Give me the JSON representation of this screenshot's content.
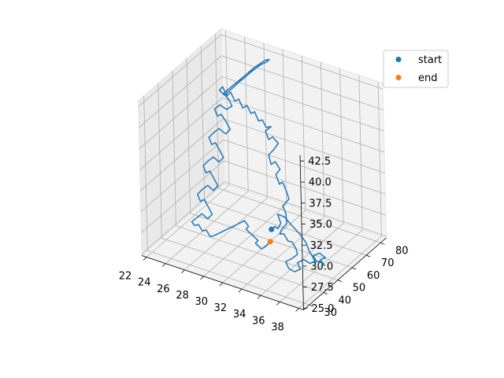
{
  "chart_data": {
    "type": "line3d",
    "title": "",
    "xlabel": "",
    "ylabel": "",
    "zlabel": "",
    "x_ticks": [
      "22",
      "24",
      "26",
      "28",
      "30",
      "32",
      "34",
      "36",
      "38"
    ],
    "y_ticks": [
      "30",
      "40",
      "50",
      "60",
      "70",
      "80"
    ],
    "z_ticks": [
      "25.0",
      "27.5",
      "30.0",
      "32.5",
      "35.0",
      "37.5",
      "40.0",
      "42.5"
    ],
    "xlim": [
      21.5,
      38.5
    ],
    "ylim": [
      26,
      84
    ],
    "zlim": [
      24.8,
      43.2
    ],
    "grid": true,
    "legend_position": "top-right",
    "series": [
      {
        "name": "",
        "color": "#1f77b4",
        "points": [
          [
            31.6,
            50.0,
            28.2
          ],
          [
            31.9,
            50.5,
            28.6
          ],
          [
            32.1,
            51.2,
            28.3
          ],
          [
            32.3,
            52.0,
            28.9
          ],
          [
            32.0,
            53.0,
            29.1
          ],
          [
            31.7,
            53.8,
            29.5
          ],
          [
            32.3,
            54.5,
            29.3
          ],
          [
            33.0,
            55.2,
            28.4
          ],
          [
            33.8,
            55.5,
            27.6
          ],
          [
            34.5,
            54.8,
            27.0
          ],
          [
            35.0,
            53.5,
            26.4
          ],
          [
            35.5,
            52.2,
            26.2
          ],
          [
            36.0,
            51.0,
            25.9
          ],
          [
            36.6,
            50.2,
            26.3
          ],
          [
            37.2,
            49.6,
            26.1
          ],
          [
            36.9,
            48.8,
            26.8
          ],
          [
            37.5,
            48.4,
            27.3
          ],
          [
            37.0,
            47.6,
            27.8
          ],
          [
            36.4,
            47.2,
            27.3
          ],
          [
            36.8,
            46.3,
            27.0
          ],
          [
            36.3,
            45.5,
            26.6
          ],
          [
            35.8,
            44.6,
            27.0
          ],
          [
            35.2,
            44.0,
            26.5
          ],
          [
            35.6,
            43.2,
            26.0
          ],
          [
            35.1,
            42.5,
            25.6
          ],
          [
            34.6,
            41.8,
            25.9
          ],
          [
            34.2,
            42.4,
            26.5
          ],
          [
            34.7,
            43.0,
            26.9
          ],
          [
            35.3,
            43.5,
            27.6
          ],
          [
            35.0,
            44.5,
            28.0
          ],
          [
            34.4,
            45.8,
            28.4
          ],
          [
            33.8,
            47.0,
            28.1
          ],
          [
            33.1,
            48.5,
            28.5
          ],
          [
            32.5,
            49.8,
            28.0
          ],
          [
            32.6,
            50.3,
            28.5
          ],
          [
            33.0,
            51.5,
            29.2
          ],
          [
            32.7,
            53.0,
            30.1
          ],
          [
            32.2,
            54.2,
            30.6
          ],
          [
            32.6,
            56.0,
            31.3
          ],
          [
            32.1,
            57.5,
            31.9
          ],
          [
            31.6,
            58.4,
            32.6
          ],
          [
            31.1,
            59.4,
            32.0
          ],
          [
            30.6,
            60.4,
            32.8
          ],
          [
            30.9,
            61.4,
            33.4
          ],
          [
            30.3,
            62.0,
            34.0
          ],
          [
            29.8,
            62.5,
            33.4
          ],
          [
            29.4,
            63.5,
            34.2
          ],
          [
            29.9,
            64.0,
            35.0
          ],
          [
            30.3,
            64.5,
            35.8
          ],
          [
            29.6,
            65.2,
            36.2
          ],
          [
            29.1,
            65.8,
            35.6
          ],
          [
            28.7,
            66.2,
            36.4
          ],
          [
            29.2,
            67.0,
            37.0
          ],
          [
            28.6,
            67.5,
            36.6
          ],
          [
            28.1,
            68.2,
            37.2
          ],
          [
            27.6,
            68.8,
            36.8
          ],
          [
            27.1,
            69.5,
            37.6
          ],
          [
            26.6,
            70.2,
            37.1
          ],
          [
            26.1,
            70.8,
            37.8
          ],
          [
            25.6,
            71.2,
            37.2
          ],
          [
            25.1,
            71.8,
            38.0
          ],
          [
            24.6,
            72.4,
            37.5
          ],
          [
            24.1,
            72.8,
            38.3
          ],
          [
            23.6,
            73.4,
            37.6
          ],
          [
            23.1,
            73.9,
            38.4
          ],
          [
            22.7,
            74.2,
            37.8
          ],
          [
            23.1,
            74.8,
            37.3
          ],
          [
            23.6,
            75.2,
            37.9
          ],
          [
            24.1,
            75.8,
            38.6
          ],
          [
            24.6,
            76.2,
            39.3
          ],
          [
            25.1,
            76.6,
            39.9
          ],
          [
            25.6,
            77.0,
            40.6
          ],
          [
            26.1,
            77.4,
            41.2
          ],
          [
            26.6,
            77.8,
            41.8
          ],
          [
            27.1,
            78.2,
            42.2
          ],
          [
            27.4,
            78.5,
            42.6
          ],
          [
            27.0,
            78.2,
            42.4
          ],
          [
            26.0,
            77.4,
            41.3
          ],
          [
            25.0,
            76.6,
            40.0
          ],
          [
            24.0,
            75.8,
            38.7
          ],
          [
            23.0,
            75.0,
            37.4
          ],
          [
            23.6,
            74.6,
            37.0
          ],
          [
            24.0,
            74.2,
            36.4
          ],
          [
            23.5,
            73.6,
            35.9
          ],
          [
            22.9,
            73.1,
            36.3
          ],
          [
            22.4,
            72.5,
            35.7
          ],
          [
            22.8,
            71.8,
            35.1
          ],
          [
            23.3,
            71.2,
            35.6
          ],
          [
            23.9,
            70.6,
            35.0
          ],
          [
            24.4,
            70.0,
            34.4
          ],
          [
            24.0,
            69.4,
            33.8
          ],
          [
            23.4,
            68.8,
            34.3
          ],
          [
            22.9,
            68.2,
            33.7
          ],
          [
            22.5,
            67.5,
            33.1
          ],
          [
            22.9,
            66.8,
            32.5
          ],
          [
            23.4,
            66.2,
            33.0
          ],
          [
            23.9,
            65.6,
            32.4
          ],
          [
            24.4,
            65.0,
            31.8
          ],
          [
            24.0,
            64.4,
            31.2
          ],
          [
            23.5,
            63.8,
            31.7
          ],
          [
            23.0,
            63.2,
            31.1
          ],
          [
            22.6,
            62.5,
            30.5
          ],
          [
            23.0,
            61.8,
            29.9
          ],
          [
            23.5,
            61.2,
            30.4
          ],
          [
            24.0,
            60.6,
            29.8
          ],
          [
            24.5,
            60.0,
            29.2
          ],
          [
            24.1,
            59.4,
            28.6
          ],
          [
            23.6,
            58.8,
            29.1
          ],
          [
            23.1,
            58.2,
            28.5
          ],
          [
            22.7,
            57.5,
            27.9
          ],
          [
            23.1,
            56.8,
            27.3
          ],
          [
            23.6,
            56.2,
            27.8
          ],
          [
            24.1,
            55.6,
            27.2
          ],
          [
            24.6,
            55.0,
            26.6
          ],
          [
            24.2,
            54.4,
            26.0
          ],
          [
            23.7,
            53.8,
            26.5
          ],
          [
            23.2,
            53.2,
            25.9
          ],
          [
            22.8,
            52.5,
            25.4
          ],
          [
            23.2,
            51.8,
            25.2
          ],
          [
            23.7,
            51.2,
            25.6
          ],
          [
            24.2,
            50.6,
            25.1
          ],
          [
            24.7,
            50.0,
            25.5
          ],
          [
            25.2,
            49.4,
            25.0
          ],
          [
            25.7,
            48.8,
            25.4
          ],
          [
            26.2,
            48.2,
            25.9
          ],
          [
            26.7,
            47.6,
            26.4
          ],
          [
            27.2,
            47.0,
            26.9
          ],
          [
            27.7,
            46.4,
            27.4
          ],
          [
            28.2,
            45.8,
            27.9
          ],
          [
            28.7,
            45.2,
            28.4
          ],
          [
            29.2,
            44.6,
            28.9
          ],
          [
            29.7,
            44.0,
            29.4
          ],
          [
            30.2,
            43.4,
            29.0
          ],
          [
            29.8,
            44.2,
            28.4
          ],
          [
            30.3,
            45.0,
            27.8
          ],
          [
            30.8,
            45.8,
            27.2
          ],
          [
            30.4,
            46.6,
            26.6
          ],
          [
            30.9,
            47.4,
            26.0
          ],
          [
            31.3,
            48.2,
            26.4
          ],
          [
            31.6,
            49.0,
            26.9
          ]
        ]
      }
    ],
    "markers": [
      {
        "label": "start",
        "color": "#1f77b4",
        "point": [
          31.6,
          50.0,
          28.2
        ]
      },
      {
        "label": "end",
        "color": "#ff7f0e",
        "point": [
          31.6,
          49.0,
          26.9
        ]
      }
    ]
  }
}
